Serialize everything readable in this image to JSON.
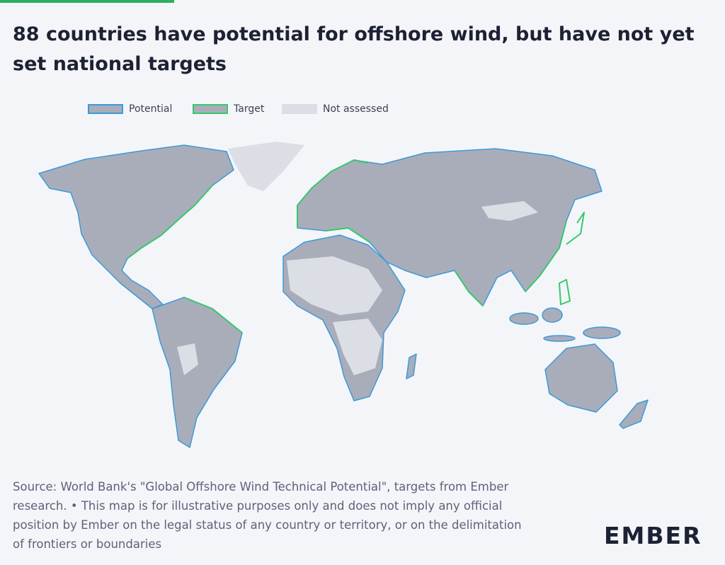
{
  "title": "88 countries have potential for offshore wind, but have not yet set national targets",
  "legend": [
    "Potential",
    "Target",
    "Not assessed"
  ],
  "source": [
    "Source: World Bank's \"Global Offshore Wind Technical Potential\", targets from Ember",
    "research. • This map is for illustrative purposes only and does not imply any official",
    "position by Ember on the legal status of any country or territory, or on the delimitation",
    "of frontiers or boundaries"
  ],
  "logo": "EMBER"
}
